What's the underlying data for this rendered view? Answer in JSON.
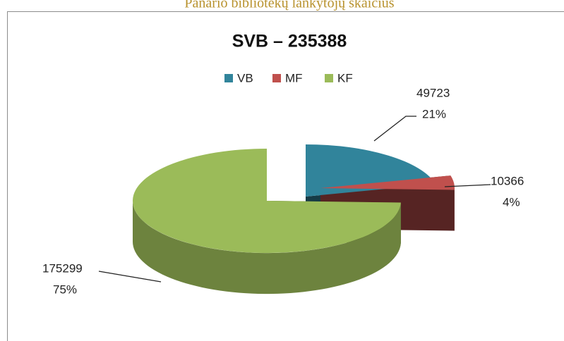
{
  "page_title": "Panario bibliotekų lankytojų skaičius",
  "chart_data": {
    "type": "pie",
    "title": "SVB – 235388",
    "categories": [
      "VB",
      "MF",
      "KF"
    ],
    "values": [
      49723,
      10366,
      175299
    ],
    "percent_labels": [
      "21%",
      "4%",
      "75%"
    ],
    "colors": [
      "#31849b",
      "#c0504d",
      "#9bbb59"
    ],
    "legend": "top"
  }
}
